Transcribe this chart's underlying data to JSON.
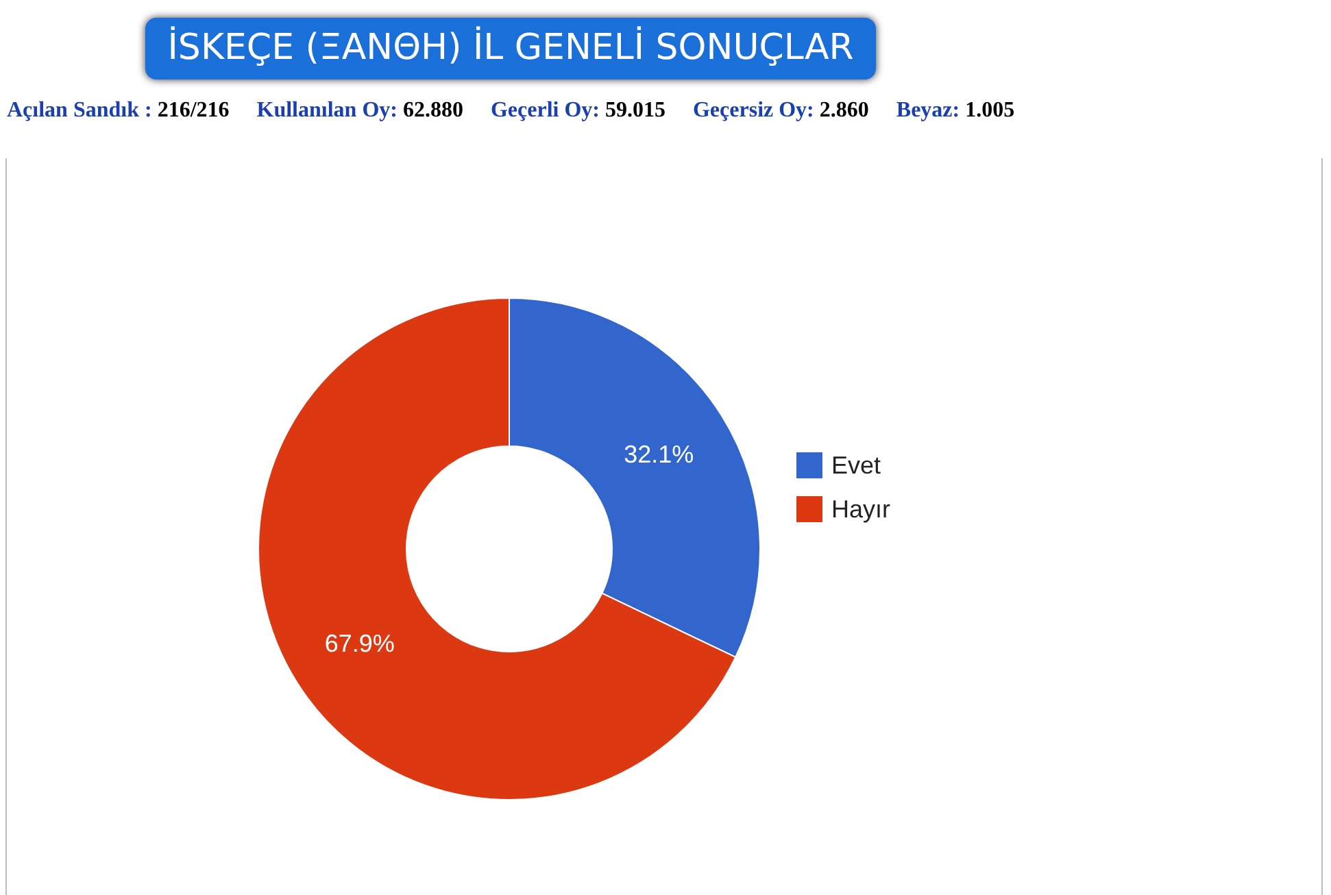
{
  "chart_data": {
    "type": "donut",
    "title": "İSKEÇE (ΞΑΝΘΗ) İL GENELİ SONUÇLAR",
    "annotations": [
      "Açılan Sandık : 216/216",
      "Kullanılan Oy: 62.880",
      "Geçerli Oy: 59.015",
      "Geçersiz Oy: 2.860",
      "Beyaz: 1.005"
    ],
    "categories": [
      "Evet",
      "Hayır"
    ],
    "values": [
      32.1,
      67.9
    ],
    "colors": [
      "#3366cc",
      "#dc3912"
    ],
    "value_labels": [
      "32.1%",
      "67.9%"
    ],
    "legend": "right"
  }
}
